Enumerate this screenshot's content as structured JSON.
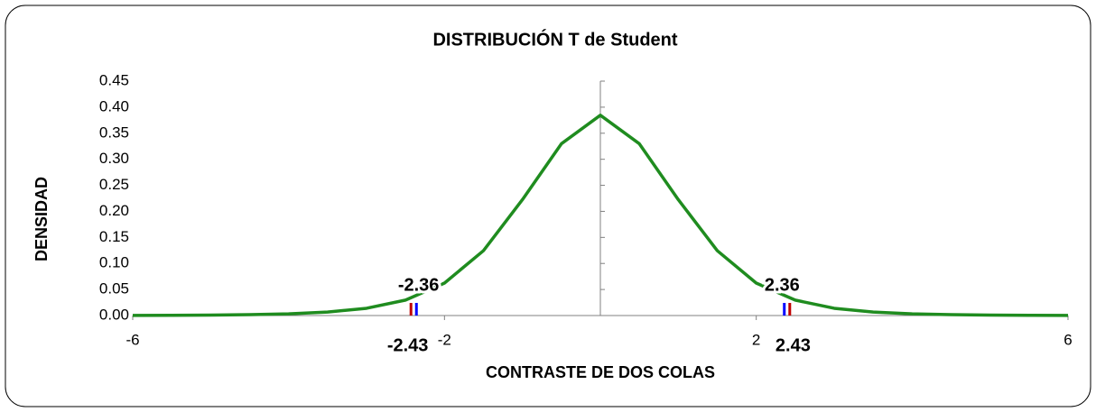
{
  "chart_data": {
    "type": "line",
    "title": "DISTRIBUCIÓN T de Student",
    "xlabel": "CONTRASTE DE DOS COLAS",
    "ylabel": "DENSIDAD",
    "x": [
      -6,
      -5.5,
      -5,
      -4.5,
      -4,
      -3.5,
      -3,
      -2.5,
      -2,
      -1.5,
      -1,
      -0.5,
      0,
      0.5,
      1,
      1.5,
      2,
      2.5,
      3,
      3.5,
      4,
      4.5,
      5,
      5.5,
      6
    ],
    "series": [
      {
        "color": "#1f8c1f",
        "values": [
          0.00027,
          0.00047,
          0.00087,
          0.00165,
          0.00326,
          0.00664,
          0.0139,
          0.0296,
          0.0623,
          0.1245,
          0.2225,
          0.3298,
          0.3846,
          0.3298,
          0.2225,
          0.1245,
          0.0623,
          0.0296,
          0.0139,
          0.00664,
          0.00326,
          0.00165,
          0.00087,
          0.00047,
          0.00027
        ]
      }
    ],
    "xlim": [
      -6,
      6
    ],
    "ylim": [
      0,
      0.45
    ],
    "xticks": [
      -6,
      -2,
      2,
      6
    ],
    "yticks": [
      {
        "value": 0,
        "label": "0.00"
      },
      0.05,
      {
        "value": 0.1,
        "label": "0.10"
      },
      0.15,
      {
        "value": 0.2,
        "label": "0.20"
      },
      0.25,
      {
        "value": 0.3,
        "label": "0.30"
      },
      0.35,
      {
        "value": 0.4,
        "label": "0.40"
      },
      0.45
    ],
    "critical_values": {
      "color": "#0000ff",
      "values": [
        -2.36,
        2.36
      ]
    },
    "statistic": {
      "color": "#c00000",
      "values": [
        -2.43,
        2.43
      ]
    }
  }
}
